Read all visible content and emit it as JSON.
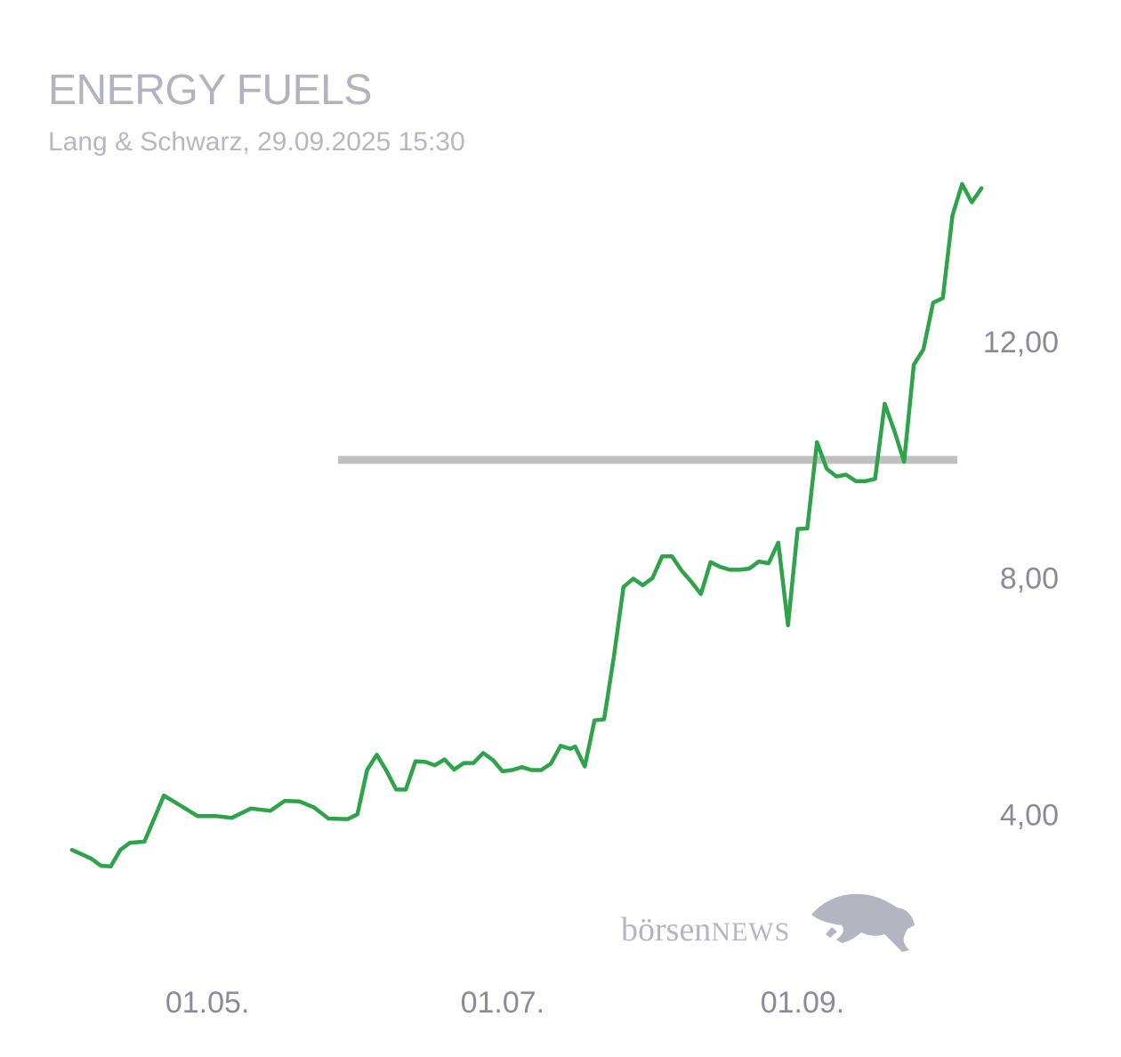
{
  "title": "ENERGY FUELS",
  "subtitle": "Lang & Schwarz, 29.09.2025 15:30",
  "watermark": {
    "text_a": "börsen",
    "text_b": "NEWS",
    "icon": "bull-icon"
  },
  "colors": {
    "line": "#2fa34a",
    "reference": "#c0c0c0",
    "text": "#8a8a99",
    "title": "#b3b3bf"
  },
  "chart_data": {
    "type": "line",
    "title": "ENERGY FUELS",
    "subtitle": "Lang & Schwarz, 29.09.2025 15:30",
    "xlabel": "",
    "ylabel": "",
    "x_range": [
      "2025-04-01",
      "2025-10-03"
    ],
    "ylim": [
      1.52,
      16.58
    ],
    "y_ticks": [
      {
        "value": 4,
        "label": "4,00"
      },
      {
        "value": 8,
        "label": "8,00"
      },
      {
        "value": 12,
        "label": "12,00"
      }
    ],
    "x_ticks": [
      {
        "date": "2025-05-01",
        "label": "01.05."
      },
      {
        "date": "2025-07-01",
        "label": "01.07."
      },
      {
        "date": "2025-09-01",
        "label": "01.09."
      }
    ],
    "reference_line": {
      "value": 10.0,
      "from": "2025-05-28",
      "to": "2025-10-03"
    },
    "grid": false,
    "legend": "none",
    "series": [
      {
        "points": [
          [
            "2025-04-03",
            3.4
          ],
          [
            "2025-04-07",
            3.25
          ],
          [
            "2025-04-09",
            3.13
          ],
          [
            "2025-04-11",
            3.12
          ],
          [
            "2025-04-13",
            3.4
          ],
          [
            "2025-04-15",
            3.52
          ],
          [
            "2025-04-18",
            3.54
          ],
          [
            "2025-04-22",
            4.32
          ],
          [
            "2025-04-25",
            4.17
          ],
          [
            "2025-04-29",
            3.97
          ],
          [
            "2025-05-03",
            3.97
          ],
          [
            "2025-05-06",
            3.94
          ],
          [
            "2025-05-10",
            4.1
          ],
          [
            "2025-05-14",
            4.06
          ],
          [
            "2025-05-17",
            4.23
          ],
          [
            "2025-05-20",
            4.22
          ],
          [
            "2025-05-23",
            4.12
          ],
          [
            "2025-05-26",
            3.93
          ],
          [
            "2025-05-30",
            3.92
          ],
          [
            "2025-06-01",
            4.0
          ],
          [
            "2025-06-03",
            4.75
          ],
          [
            "2025-06-05",
            5.01
          ],
          [
            "2025-06-07",
            4.74
          ],
          [
            "2025-06-09",
            4.42
          ],
          [
            "2025-06-11",
            4.42
          ],
          [
            "2025-06-13",
            4.9
          ],
          [
            "2025-06-15",
            4.89
          ],
          [
            "2025-06-17",
            4.83
          ],
          [
            "2025-06-19",
            4.93
          ],
          [
            "2025-06-21",
            4.76
          ],
          [
            "2025-06-23",
            4.87
          ],
          [
            "2025-06-25",
            4.87
          ],
          [
            "2025-06-27",
            5.04
          ],
          [
            "2025-06-29",
            4.92
          ],
          [
            "2025-07-01",
            4.73
          ],
          [
            "2025-07-03",
            4.75
          ],
          [
            "2025-07-05",
            4.8
          ],
          [
            "2025-07-07",
            4.75
          ],
          [
            "2025-07-09",
            4.75
          ],
          [
            "2025-07-11",
            4.86
          ],
          [
            "2025-07-13",
            5.16
          ],
          [
            "2025-07-15",
            5.11
          ],
          [
            "2025-07-16",
            5.15
          ],
          [
            "2025-07-18",
            4.81
          ],
          [
            "2025-07-20",
            5.59
          ],
          [
            "2025-07-22",
            5.61
          ],
          [
            "2025-07-24",
            6.66
          ],
          [
            "2025-07-26",
            7.85
          ],
          [
            "2025-07-28",
            7.99
          ],
          [
            "2025-07-30",
            7.88
          ],
          [
            "2025-08-01",
            8.0
          ],
          [
            "2025-08-03",
            8.37
          ],
          [
            "2025-08-05",
            8.37
          ],
          [
            "2025-08-07",
            8.13
          ],
          [
            "2025-08-09",
            7.94
          ],
          [
            "2025-08-11",
            7.73
          ],
          [
            "2025-08-13",
            8.27
          ],
          [
            "2025-08-15",
            8.19
          ],
          [
            "2025-08-17",
            8.14
          ],
          [
            "2025-08-19",
            8.14
          ],
          [
            "2025-08-21",
            8.16
          ],
          [
            "2025-08-23",
            8.28
          ],
          [
            "2025-08-25",
            8.25
          ],
          [
            "2025-08-27",
            8.6
          ],
          [
            "2025-08-29",
            7.2
          ],
          [
            "2025-08-31",
            8.83
          ],
          [
            "2025-09-02",
            8.84
          ],
          [
            "2025-09-04",
            10.3
          ],
          [
            "2025-09-06",
            9.85
          ],
          [
            "2025-09-08",
            9.72
          ],
          [
            "2025-09-10",
            9.75
          ],
          [
            "2025-09-12",
            9.64
          ],
          [
            "2025-09-14",
            9.64
          ],
          [
            "2025-09-16",
            9.68
          ],
          [
            "2025-09-18",
            10.95
          ],
          [
            "2025-09-20",
            10.49
          ],
          [
            "2025-09-22",
            9.97
          ],
          [
            "2025-09-24",
            11.61
          ],
          [
            "2025-09-26",
            11.87
          ],
          [
            "2025-09-28",
            12.66
          ],
          [
            "2025-09-30",
            12.74
          ],
          [
            "2025-10-02",
            14.14
          ],
          [
            "2025-10-04",
            14.67
          ],
          [
            "2025-10-06",
            14.36
          ],
          [
            "2025-10-08",
            14.6
          ]
        ]
      }
    ]
  }
}
